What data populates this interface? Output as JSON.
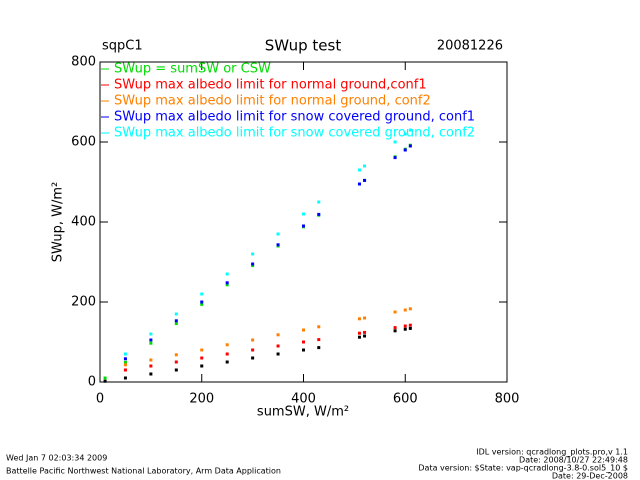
{
  "chart_data": {
    "type": "scatter",
    "title": "SWup test",
    "site": "sqpC1",
    "date": "20081226",
    "xlabel": "sumSW, W/m²",
    "ylabel": "SWup, W/m²",
    "xlim": [
      0,
      800
    ],
    "ylim": [
      0,
      800
    ],
    "xticks": [
      0,
      200,
      400,
      600,
      800
    ],
    "yticks": [
      0,
      200,
      400,
      600,
      800
    ],
    "x": [
      10,
      50,
      100,
      150,
      200,
      250,
      300,
      350,
      400,
      430,
      510,
      520,
      580,
      600,
      610
    ],
    "series": [
      {
        "name": "SWup = sumSW or CSW",
        "color": "#00dd00",
        "values": [
          10,
          49,
          97,
          146,
          194,
          243,
          291,
          340,
          388,
          417,
          495,
          504,
          563,
          582,
          592
        ]
      },
      {
        "name": "SWup max albedo limit for normal ground,conf1",
        "color": "#ff0000",
        "values": [
          null,
          30,
          40,
          50,
          60,
          70,
          80,
          90,
          100,
          106,
          122,
          124,
          136,
          140,
          142
        ]
      },
      {
        "name": "SWup max albedo limit for normal ground, conf2",
        "color": "#ff8000",
        "values": [
          null,
          43,
          55,
          68,
          80,
          93,
          105,
          118,
          130,
          138,
          158,
          160,
          175,
          180,
          183
        ]
      },
      {
        "name": "SWup max albedo limit for snow covered ground, conf1",
        "color": "#0000ff",
        "values": [
          null,
          58,
          105,
          153,
          200,
          248,
          295,
          343,
          390,
          419,
          495,
          504,
          561,
          580,
          590
        ]
      },
      {
        "name": "SWup max albedo limit for snow covered ground, conf2",
        "color": "#00ffff",
        "values": [
          null,
          70,
          120,
          170,
          220,
          270,
          320,
          370,
          420,
          450,
          530,
          540,
          600,
          620,
          630
        ]
      },
      {
        "color": "#000000",
        "values": [
          2,
          10,
          20,
          30,
          40,
          50,
          60,
          70,
          80,
          86,
          112,
          115,
          128,
          132,
          134
        ]
      }
    ]
  },
  "footer": {
    "timestamp": "Wed Jan  7 02:03:34 2009",
    "lab": "Battelle Pacific Northwest National Laboratory, Arm Data Application",
    "idl_version": "IDL version: qcradlong_plots.pro,v 1.1",
    "idl_date": "Date: 2008/10/27 22:49:48",
    "data_version": "Data version: $State: vap-qcradlong-3.8-0.sol5_10 $",
    "data_date": "Date: 29-Dec-2008"
  }
}
